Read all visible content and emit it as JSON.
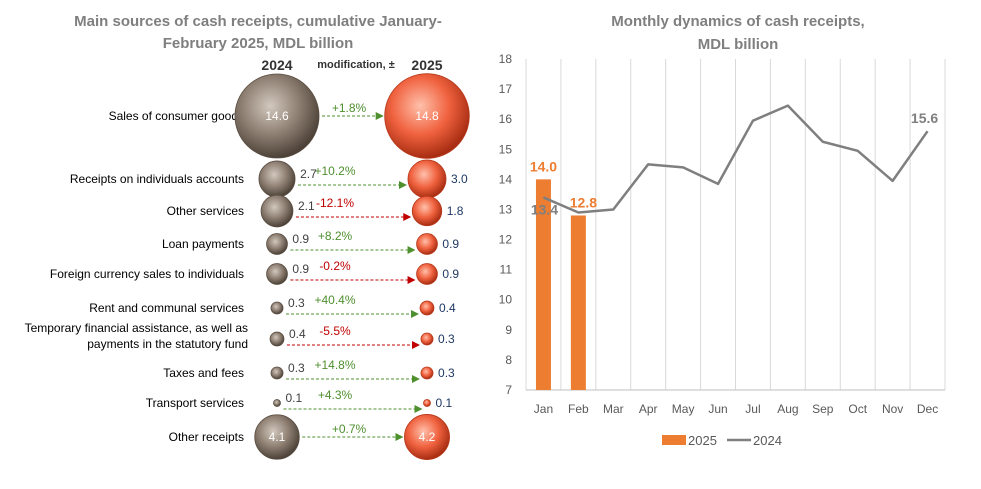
{
  "left": {
    "title_line1": "Main sources of cash receipts, cumulative January-",
    "title_line2": "February 2025,  MDL billion",
    "col_2024": "2024",
    "col_mod": "modification, ±",
    "col_2025": "2025",
    "rows": [
      {
        "label": [
          "Sales of consumer goods"
        ],
        "v2024": "14.6",
        "v2025": "14.8",
        "mod": "+1.8%",
        "positive": true,
        "inner": true
      },
      {
        "label": [
          "Receipts on individuals accounts"
        ],
        "v2024": "2.7",
        "v2025": "3.0",
        "mod": "+10.2%",
        "positive": true,
        "inner": false
      },
      {
        "label": [
          "Other services"
        ],
        "v2024": "2.1",
        "v2025": "1.8",
        "mod": "-12.1%",
        "positive": false,
        "inner": false
      },
      {
        "label": [
          "Loan payments"
        ],
        "v2024": "0.9",
        "v2025": "0.9",
        "mod": "+8.2%",
        "positive": true,
        "inner": false
      },
      {
        "label": [
          "Foreign currency sales to individuals"
        ],
        "v2024": "0.9",
        "v2025": "0.9",
        "mod": "-0.2%",
        "positive": false,
        "inner": false
      },
      {
        "label": [
          "Rent and communal services"
        ],
        "v2024": "0.3",
        "v2025": "0.4",
        "mod": "+40.4%",
        "positive": true,
        "inner": false
      },
      {
        "label": [
          "Temporary financial assistance, as well as",
          "payments in the statutory fund"
        ],
        "v2024": "0.4",
        "v2025": "0.3",
        "mod": "-5.5%",
        "positive": false,
        "inner": false
      },
      {
        "label": [
          "Taxes and fees"
        ],
        "v2024": "0.3",
        "v2025": "0.3",
        "mod": "+14.8%",
        "positive": true,
        "inner": false
      },
      {
        "label": [
          "Transport services"
        ],
        "v2024": "0.1",
        "v2025": "0.1",
        "mod": "+4.3%",
        "positive": true,
        "inner": false
      },
      {
        "label": [
          "Other receipts"
        ],
        "v2024": "4.1",
        "v2025": "4.2",
        "mod": "+0.7%",
        "positive": true,
        "inner": true
      }
    ]
  },
  "chart_data": {
    "type": "bar",
    "title": [
      "Monthly dynamics of cash receipts,",
      "MDL billion"
    ],
    "categories": [
      "Jan",
      "Feb",
      "Mar",
      "Apr",
      "May",
      "Jun",
      "Jul",
      "Aug",
      "Sep",
      "Oct",
      "Nov",
      "Dec"
    ],
    "ylim": [
      7,
      18
    ],
    "yticks": [
      "7",
      "8",
      "9",
      "10",
      "11",
      "12",
      "13",
      "14",
      "15",
      "16",
      "17",
      "18"
    ],
    "grid": "vertical",
    "legend": "bottom",
    "series": [
      {
        "name": "2025",
        "type": "bar",
        "color": "#ED7D31",
        "values": [
          14.0,
          12.8,
          null,
          null,
          null,
          null,
          null,
          null,
          null,
          null,
          null,
          null
        ],
        "labels": [
          "14.0",
          "12.8"
        ]
      },
      {
        "name": "2024",
        "type": "line",
        "color": "#7F7F7F",
        "values": [
          13.4,
          12.9,
          13.0,
          14.5,
          14.4,
          13.85,
          15.95,
          16.45,
          15.25,
          14.95,
          13.95,
          15.6
        ],
        "labels": {
          "0": "13.4",
          "11": "15.6"
        }
      }
    ]
  },
  "colors": {
    "title": "#7F7F7F",
    "grey_bubble": "#8B7D70",
    "orange_bubble": "#F06A4A",
    "positive": "#4E8F2E",
    "negative": "#C00000",
    "value_2025": "#1F3864"
  }
}
